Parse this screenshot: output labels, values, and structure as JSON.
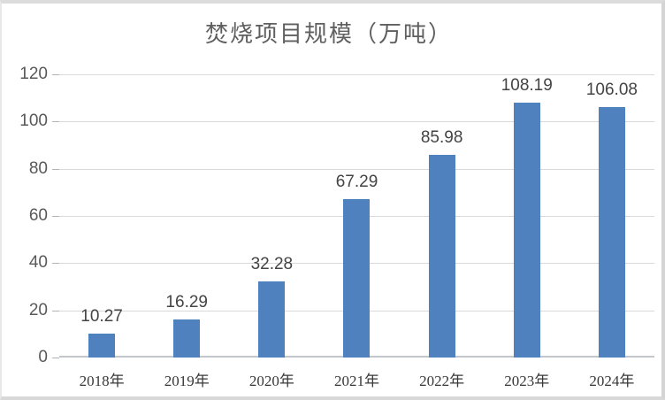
{
  "chart_data": {
    "type": "bar",
    "title": "焚烧项目规模（万吨）",
    "categories": [
      "2018年",
      "2019年",
      "2020年",
      "2021年",
      "2022年",
      "2023年",
      "2024年"
    ],
    "values": [
      10.27,
      16.29,
      32.28,
      67.29,
      85.98,
      108.19,
      106.08
    ],
    "value_labels": [
      "10.27",
      "16.29",
      "32.28",
      "67.29",
      "85.98",
      "108.19",
      "106.08"
    ],
    "xlabel": "",
    "ylabel": "",
    "ylim": [
      0,
      120
    ],
    "yticks": [
      0,
      20,
      40,
      60,
      80,
      100,
      120
    ],
    "grid": true,
    "legend": "none",
    "colors": {
      "bar": "#4e81bd",
      "gridline": "#d9d9d9",
      "axis_line": "#c3c7cb",
      "tick": "#b3b3b3",
      "title_text": "#5f5f5f",
      "value_label_text": "#444444",
      "ytick_label_text": "#595959",
      "xtick_label_text": "#383838"
    }
  }
}
